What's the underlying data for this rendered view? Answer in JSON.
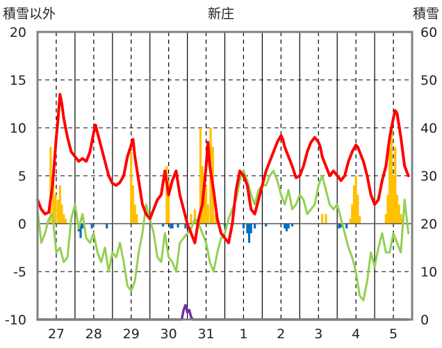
{
  "chart_data": {
    "type": "bar+line",
    "title": "新庄",
    "left_axis_label": "積雪以外",
    "right_axis_label": "積雪",
    "left_ylim": [
      -10,
      20
    ],
    "right_ylim": [
      0,
      60
    ],
    "left_ticks": [
      "-10",
      "-5",
      "0",
      "5",
      "10",
      "15",
      "20"
    ],
    "right_ticks": [
      "0",
      "10",
      "20",
      "30",
      "40",
      "50",
      "60"
    ],
    "x_range": [
      26.5,
      36.5
    ],
    "day_labels": [
      {
        "label": "27",
        "x": 27
      },
      {
        "label": "28",
        "x": 28
      },
      {
        "label": "29",
        "x": 29
      },
      {
        "label": "30",
        "x": 30
      },
      {
        "label": "31",
        "x": 31
      },
      {
        "label": "1",
        "x": 32
      },
      {
        "label": "2",
        "x": 33
      },
      {
        "label": "3",
        "x": 34
      },
      {
        "label": "4",
        "x": 35
      },
      {
        "label": "5",
        "x": 36
      }
    ],
    "midnight_lines": [
      26.5,
      27.5,
      28.5,
      29.5,
      30.5,
      31.5,
      32.5,
      33.5,
      34.5,
      35.5
    ],
    "noon_lines": [
      27,
      28,
      29,
      30,
      31,
      32,
      33,
      34,
      35,
      36
    ],
    "colors": {
      "temp_max": "#ff0000",
      "temp_min": "#92d050",
      "snow_depth": "#7030a0",
      "precip_positive": "#ffc000",
      "precip_negative": "#0070c0",
      "axes": "#808080",
      "grid": "#000000"
    },
    "series": [
      {
        "key": "temp_max",
        "axis": "left",
        "x": [
          26.5,
          26.6,
          26.7,
          26.8,
          26.9,
          27.0,
          27.05,
          27.1,
          27.15,
          27.2,
          27.3,
          27.4,
          27.5,
          27.6,
          27.7,
          27.8,
          27.9,
          28.0,
          28.05,
          28.1,
          28.2,
          28.3,
          28.4,
          28.5,
          28.6,
          28.7,
          28.8,
          28.9,
          29.0,
          29.05,
          29.1,
          29.2,
          29.3,
          29.4,
          29.5,
          29.6,
          29.7,
          29.8,
          29.9,
          30.0,
          30.1,
          30.2,
          30.3,
          30.4,
          30.5,
          30.6,
          30.7,
          30.8,
          30.9,
          31.0,
          31.05,
          31.1,
          31.2,
          31.3,
          31.4,
          31.5,
          31.6,
          31.7,
          31.8,
          31.9,
          32.0,
          32.1,
          32.2,
          32.3,
          32.4,
          32.5,
          32.6,
          32.7,
          32.8,
          32.9,
          33.0,
          33.05,
          33.1,
          33.2,
          33.3,
          33.4,
          33.5,
          33.6,
          33.7,
          33.8,
          33.9,
          34.0,
          34.05,
          34.1,
          34.2,
          34.3,
          34.4,
          34.5,
          34.6,
          34.7,
          34.8,
          34.9,
          35.0,
          35.05,
          35.1,
          35.2,
          35.3,
          35.4,
          35.5,
          35.6,
          35.7,
          35.8,
          35.9,
          36.0,
          36.05,
          36.1,
          36.2,
          36.3,
          36.4
        ],
        "values": [
          2.5,
          1.5,
          1.0,
          1.2,
          4.0,
          9.0,
          11.0,
          13.5,
          12.5,
          11.0,
          9.0,
          7.5,
          7.0,
          6.5,
          6.8,
          6.5,
          7.5,
          9.5,
          10.3,
          9.5,
          8.0,
          6.5,
          5.0,
          4.2,
          4.0,
          4.3,
          5.0,
          7.0,
          8.2,
          8.8,
          7.0,
          4.5,
          2.0,
          1.0,
          0.5,
          1.5,
          2.5,
          3.0,
          5.5,
          3.0,
          4.5,
          5.5,
          3.0,
          1.5,
          0.0,
          -1.0,
          -2.0,
          0.5,
          2.0,
          6.0,
          8.5,
          6.0,
          3.5,
          0.5,
          -1.0,
          -1.5,
          -2.0,
          0.0,
          3.5,
          5.5,
          5.0,
          4.0,
          1.5,
          1.0,
          2.5,
          4.0,
          5.5,
          6.5,
          7.5,
          8.5,
          9.2,
          8.8,
          8.0,
          7.0,
          6.0,
          4.8,
          5.0,
          6.0,
          7.5,
          8.5,
          9.0,
          8.5,
          8.0,
          7.0,
          6.0,
          5.0,
          5.5,
          5.0,
          4.5,
          5.0,
          6.5,
          7.5,
          8.2,
          8.0,
          7.5,
          6.5,
          5.0,
          3.0,
          2.0,
          2.5,
          4.5,
          6.0,
          9.0,
          11.0,
          11.8,
          11.5,
          9.0,
          6.0,
          5.0
        ]
      },
      {
        "key": "temp_min",
        "axis": "left",
        "x": [
          26.5,
          26.6,
          26.7,
          26.8,
          26.9,
          27.0,
          27.1,
          27.2,
          27.3,
          27.4,
          27.5,
          27.6,
          27.7,
          27.8,
          27.9,
          28.0,
          28.1,
          28.2,
          28.3,
          28.4,
          28.5,
          28.6,
          28.7,
          28.8,
          28.9,
          29.0,
          29.1,
          29.2,
          29.3,
          29.4,
          29.5,
          29.6,
          29.7,
          29.8,
          29.9,
          30.0,
          30.1,
          30.2,
          30.3,
          30.4,
          30.5,
          30.6,
          30.7,
          30.8,
          30.9,
          31.0,
          31.1,
          31.2,
          31.3,
          31.4,
          31.5,
          31.6,
          31.7,
          31.8,
          31.9,
          32.0,
          32.1,
          32.2,
          32.3,
          32.4,
          32.5,
          32.6,
          32.7,
          32.8,
          32.9,
          33.0,
          33.1,
          33.2,
          33.3,
          33.4,
          33.5,
          33.6,
          33.7,
          33.8,
          33.9,
          34.0,
          34.1,
          34.2,
          34.3,
          34.4,
          34.5,
          34.6,
          34.7,
          34.8,
          34.9,
          35.0,
          35.1,
          35.2,
          35.3,
          35.4,
          35.5,
          35.6,
          35.7,
          35.8,
          35.9,
          36.0,
          36.1,
          36.2,
          36.3,
          36.4
        ],
        "values": [
          1.5,
          -2.0,
          -1.0,
          0.5,
          1.0,
          -3.0,
          -2.5,
          -4.0,
          -3.5,
          0.5,
          2.0,
          -0.5,
          1.0,
          -1.5,
          -2.0,
          -1.0,
          -3.0,
          -4.0,
          -2.5,
          -5.0,
          -3.0,
          -3.5,
          -2.0,
          -4.0,
          -6.5,
          -7.0,
          -6.0,
          -3.0,
          -1.0,
          2.0,
          0.5,
          -1.0,
          -3.5,
          -4.0,
          -1.0,
          -3.5,
          -4.0,
          -5.0,
          -2.0,
          -1.5,
          -1.0,
          -0.5,
          0.5,
          0.0,
          -1.0,
          -2.0,
          -4.0,
          -5.0,
          -3.0,
          -1.5,
          -1.0,
          0.5,
          1.5,
          2.5,
          4.5,
          5.5,
          4.5,
          3.0,
          2.0,
          3.5,
          4.0,
          4.0,
          5.0,
          5.5,
          4.5,
          3.0,
          2.0,
          3.5,
          1.5,
          2.0,
          3.0,
          2.5,
          1.0,
          1.5,
          2.0,
          4.0,
          5.0,
          3.5,
          2.0,
          1.5,
          2.0,
          0.5,
          -1.0,
          -2.5,
          -3.5,
          -5.0,
          -7.5,
          -8.0,
          -6.0,
          -3.0,
          -4.5,
          -2.5,
          -1.0,
          -3.0,
          -3.0,
          -1.0,
          -2.0,
          -3.0,
          2.5,
          -1.0
        ]
      },
      {
        "key": "snow_depth",
        "axis": "right",
        "x": [
          26.5,
          30.35,
          30.4,
          30.45,
          30.5,
          30.55,
          30.6,
          30.65,
          36.4
        ],
        "values": [
          0,
          0,
          2,
          3,
          1.5,
          2,
          0.5,
          0,
          0
        ]
      }
    ],
    "precip_bars": [
      [
        26.85,
        8
      ],
      [
        26.92,
        5
      ],
      [
        26.98,
        3
      ],
      [
        27.05,
        2.5
      ],
      [
        27.1,
        4
      ],
      [
        27.15,
        2
      ],
      [
        27.2,
        1
      ],
      [
        27.25,
        0.5
      ],
      [
        27.6,
        -0.8
      ],
      [
        27.65,
        -1.5
      ],
      [
        27.7,
        -0.5
      ],
      [
        27.95,
        -0.5
      ],
      [
        28.35,
        -0.5
      ],
      [
        29.0,
        7.5
      ],
      [
        29.05,
        4
      ],
      [
        29.1,
        2
      ],
      [
        29.15,
        1
      ],
      [
        29.85,
        -0.3
      ],
      [
        29.95,
        6
      ],
      [
        30.0,
        4.5
      ],
      [
        30.05,
        -0.5
      ],
      [
        30.1,
        -0.5
      ],
      [
        30.25,
        -0.4
      ],
      [
        30.45,
        -0.5
      ],
      [
        30.6,
        1
      ],
      [
        30.7,
        1.5
      ],
      [
        30.85,
        10
      ],
      [
        30.9,
        6
      ],
      [
        30.95,
        5
      ],
      [
        31.0,
        4
      ],
      [
        31.05,
        2
      ],
      [
        31.12,
        10
      ],
      [
        31.18,
        8
      ],
      [
        31.25,
        1
      ],
      [
        31.3,
        0.5
      ],
      [
        31.5,
        -0.3
      ],
      [
        32.0,
        -0.5
      ],
      [
        32.1,
        -1
      ],
      [
        32.15,
        -2
      ],
      [
        32.2,
        -1
      ],
      [
        32.3,
        -0.5
      ],
      [
        32.6,
        -0.3
      ],
      [
        33.1,
        -0.5
      ],
      [
        33.15,
        -0.8
      ],
      [
        33.2,
        -0.5
      ],
      [
        33.3,
        -0.3
      ],
      [
        34.1,
        1
      ],
      [
        34.2,
        1
      ],
      [
        34.55,
        -0.5
      ],
      [
        34.6,
        -0.4
      ],
      [
        34.75,
        -0.5
      ],
      [
        34.85,
        0.5
      ],
      [
        34.9,
        2
      ],
      [
        34.95,
        4
      ],
      [
        35.0,
        5
      ],
      [
        35.05,
        3
      ],
      [
        35.1,
        0.8
      ],
      [
        35.8,
        1
      ],
      [
        35.85,
        3
      ],
      [
        35.9,
        8
      ],
      [
        35.95,
        10
      ],
      [
        36.0,
        5
      ],
      [
        36.05,
        8
      ],
      [
        36.1,
        3
      ],
      [
        36.15,
        2
      ],
      [
        36.2,
        1
      ],
      [
        36.25,
        0.5
      ]
    ]
  }
}
